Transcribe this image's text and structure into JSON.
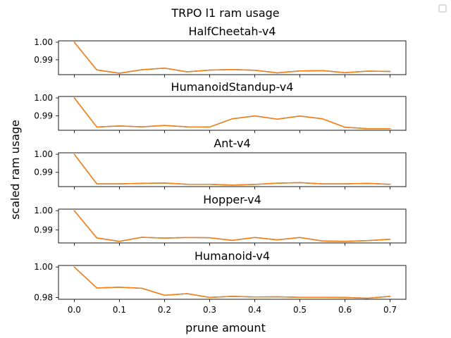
{
  "suptitle": "TRPO l1 ram usage",
  "ylabel": "scaled ram usage",
  "xlabel": "prune amount",
  "x_ticks": [
    "0.0",
    "0.1",
    "0.2",
    "0.3",
    "0.4",
    "0.5",
    "0.6",
    "0.7"
  ],
  "colors": {
    "line": "#ff7f0e",
    "line_under": "#1f77b4",
    "axes": "#000000"
  },
  "legend": {
    "placement": "top-right",
    "entries": []
  },
  "chart_data": [
    {
      "type": "line",
      "title": "HalfCheetah-v4",
      "x": [
        0.0,
        0.05,
        0.1,
        0.15,
        0.2,
        0.25,
        0.3,
        0.35,
        0.4,
        0.45,
        0.5,
        0.55,
        0.6,
        0.65,
        0.7
      ],
      "values": [
        1.0,
        0.9842,
        0.9823,
        0.9843,
        0.9852,
        0.9831,
        0.9841,
        0.9844,
        0.984,
        0.9825,
        0.9836,
        0.9838,
        0.9826,
        0.9835,
        0.9833
      ],
      "ylim": [
        0.9815,
        1.0008
      ],
      "yticks": [
        0.99,
        1.0
      ],
      "ytick_labels": [
        "0.99",
        "1.00"
      ]
    },
    {
      "type": "line",
      "title": "HumanoidStandup-v4",
      "x": [
        0.0,
        0.05,
        0.1,
        0.15,
        0.2,
        0.25,
        0.3,
        0.35,
        0.4,
        0.45,
        0.5,
        0.55,
        0.6,
        0.65,
        0.7
      ],
      "values": [
        1.0,
        0.9838,
        0.9844,
        0.9839,
        0.9847,
        0.9839,
        0.9838,
        0.9884,
        0.99,
        0.9882,
        0.9899,
        0.9884,
        0.9837,
        0.9829,
        0.9829
      ],
      "ylim": [
        0.982,
        1.0008
      ],
      "yticks": [
        0.99,
        1.0
      ],
      "ytick_labels": [
        "0.99",
        "1.00"
      ]
    },
    {
      "type": "line",
      "title": "Ant-v4",
      "x": [
        0.0,
        0.05,
        0.1,
        0.15,
        0.2,
        0.25,
        0.3,
        0.35,
        0.4,
        0.45,
        0.5,
        0.55,
        0.6,
        0.65,
        0.7
      ],
      "values": [
        1.0,
        0.9836,
        0.9836,
        0.9839,
        0.9841,
        0.9834,
        0.9834,
        0.9829,
        0.9833,
        0.984,
        0.9843,
        0.9836,
        0.9836,
        0.9839,
        0.9834
      ],
      "ylim": [
        0.9821,
        1.0008
      ],
      "yticks": [
        0.99,
        1.0
      ],
      "ytick_labels": [
        "0.99",
        "1.00"
      ]
    },
    {
      "type": "line",
      "title": "Hopper-v4",
      "x": [
        0.0,
        0.05,
        0.1,
        0.15,
        0.2,
        0.25,
        0.3,
        0.35,
        0.4,
        0.45,
        0.5,
        0.55,
        0.6,
        0.65,
        0.7
      ],
      "values": [
        1.0,
        0.9859,
        0.9841,
        0.9862,
        0.9858,
        0.9861,
        0.986,
        0.9846,
        0.9861,
        0.9849,
        0.9861,
        0.9843,
        0.9841,
        0.9845,
        0.9852
      ],
      "ylim": [
        0.9833,
        1.0008
      ],
      "yticks": [
        0.99,
        1.0
      ],
      "ytick_labels": [
        "0.99",
        "1.00"
      ]
    },
    {
      "type": "line",
      "title": "Humanoid-v4",
      "x": [
        0.0,
        0.05,
        0.1,
        0.15,
        0.2,
        0.25,
        0.3,
        0.35,
        0.4,
        0.45,
        0.5,
        0.55,
        0.6,
        0.65,
        0.7
      ],
      "values": [
        1.0,
        0.9862,
        0.9867,
        0.986,
        0.9814,
        0.9825,
        0.98,
        0.9807,
        0.9803,
        0.9804,
        0.9801,
        0.9801,
        0.98,
        0.9795,
        0.9807
      ],
      "ylim": [
        0.9788,
        1.001
      ],
      "yticks": [
        0.98,
        1.0
      ],
      "ytick_labels": [
        "0.98",
        "1.00"
      ]
    }
  ]
}
